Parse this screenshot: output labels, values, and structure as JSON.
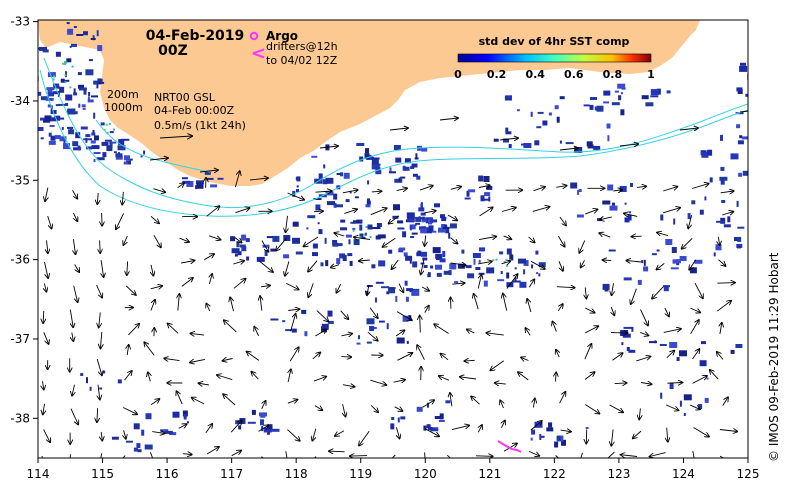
{
  "map": {
    "date_line1": "04-Feb-2019",
    "date_line2": "00Z",
    "legend_argo": "Argo",
    "legend_drifters_line1": "drifters@12h",
    "legend_drifters_line2": "to 04/02 12Z",
    "contour_200": "200m",
    "contour_1000": "1000m",
    "product_line1": "NRT00 GSL",
    "product_line2": "04-Feb 00:00Z",
    "product_line3": "0.5m/s (1kt 24h)",
    "colorbar_title": "std dev of 4hr SST comp",
    "colorbar_ticks": [
      "0",
      "0.2",
      "0.4",
      "0.6",
      "0.8",
      "1"
    ],
    "x_ticks": [
      "114",
      "115",
      "116",
      "117",
      "118",
      "119",
      "120",
      "121",
      "122",
      "123",
      "124",
      "125"
    ],
    "y_ticks": [
      "-33",
      "-34",
      "-35",
      "-36",
      "-37",
      "-38"
    ],
    "credit": "© IMOS 09-Feb-2019 11:29 Hobart",
    "colors": {
      "land": "#fcc993",
      "contour": "#35d3e3",
      "argo": "#ff33ff",
      "drifter": "#ff33ff",
      "cloud_patch": "#1e2f9c"
    }
  }
}
